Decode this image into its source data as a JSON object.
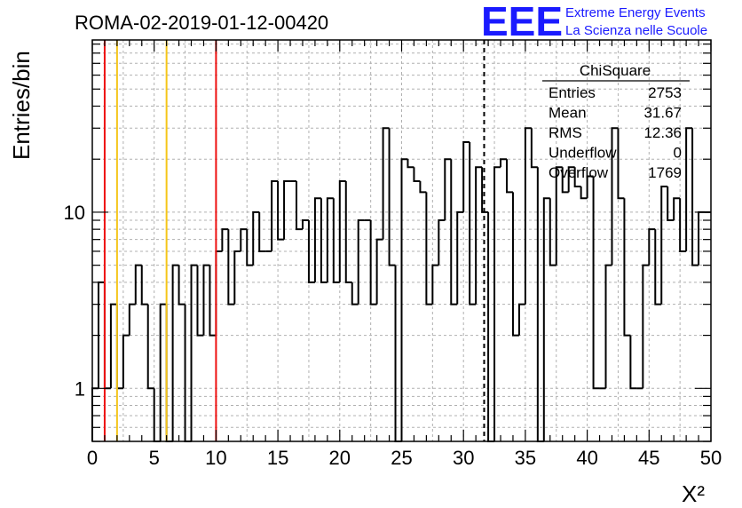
{
  "chart_data": {
    "type": "bar",
    "title": "ROMA-02-2019-01-12-00420",
    "xlabel": "X²",
    "ylabel": "Entries/bin",
    "xlim": [
      0,
      50
    ],
    "ylim": [
      0.5,
      95
    ],
    "log_y": true,
    "grid": true,
    "bin_width": 0.5,
    "x_ticks": [
      "0",
      "5",
      "10",
      "15",
      "20",
      "25",
      "30",
      "35",
      "40",
      "45",
      "50"
    ],
    "y_ticks": [
      "1",
      "10"
    ],
    "values": [
      1,
      4,
      1,
      3,
      1,
      2,
      3,
      5,
      3,
      1,
      0,
      3,
      0,
      5,
      3,
      0,
      5,
      2,
      5,
      2,
      6,
      8,
      3,
      6,
      8,
      5,
      10,
      6,
      6,
      15,
      7,
      15,
      15,
      8,
      9,
      4,
      12,
      4,
      12,
      4,
      15,
      4,
      3,
      9,
      9,
      3,
      7,
      30,
      5,
      0,
      20,
      18,
      15,
      13,
      3,
      5,
      9,
      20,
      3,
      10,
      25,
      3,
      18,
      10,
      0,
      18,
      20,
      13,
      2,
      3,
      30,
      18,
      0,
      12,
      5,
      18,
      13,
      18,
      14,
      12,
      16,
      1,
      1,
      5,
      30,
      12,
      2,
      1,
      1,
      5,
      8,
      3,
      14,
      9,
      12,
      6,
      30,
      5,
      10,
      10
    ],
    "vertical_lines": [
      {
        "x": 1,
        "color": "#ee1111",
        "style": "solid"
      },
      {
        "x": 2,
        "color": "#f5c518",
        "style": "solid"
      },
      {
        "x": 6,
        "color": "#f5c518",
        "style": "solid"
      },
      {
        "x": 10,
        "color": "#ee1111",
        "style": "solid"
      },
      {
        "x": 31.67,
        "color": "#000000",
        "style": "dashed"
      }
    ]
  },
  "logo": {
    "letters": "EEE",
    "line1": "Extreme Energy Events",
    "line2": "La Scienza nelle Scuole",
    "color": "#1a1aff"
  },
  "stats": {
    "title": "ChiSquare",
    "rows": [
      {
        "label": "Entries",
        "value": "2753"
      },
      {
        "label": "Mean",
        "value": "31.67"
      },
      {
        "label": "RMS",
        "value": "12.36"
      },
      {
        "label": "Underflow",
        "value": "0"
      },
      {
        "label": "Overflow",
        "value": "1769"
      }
    ]
  }
}
